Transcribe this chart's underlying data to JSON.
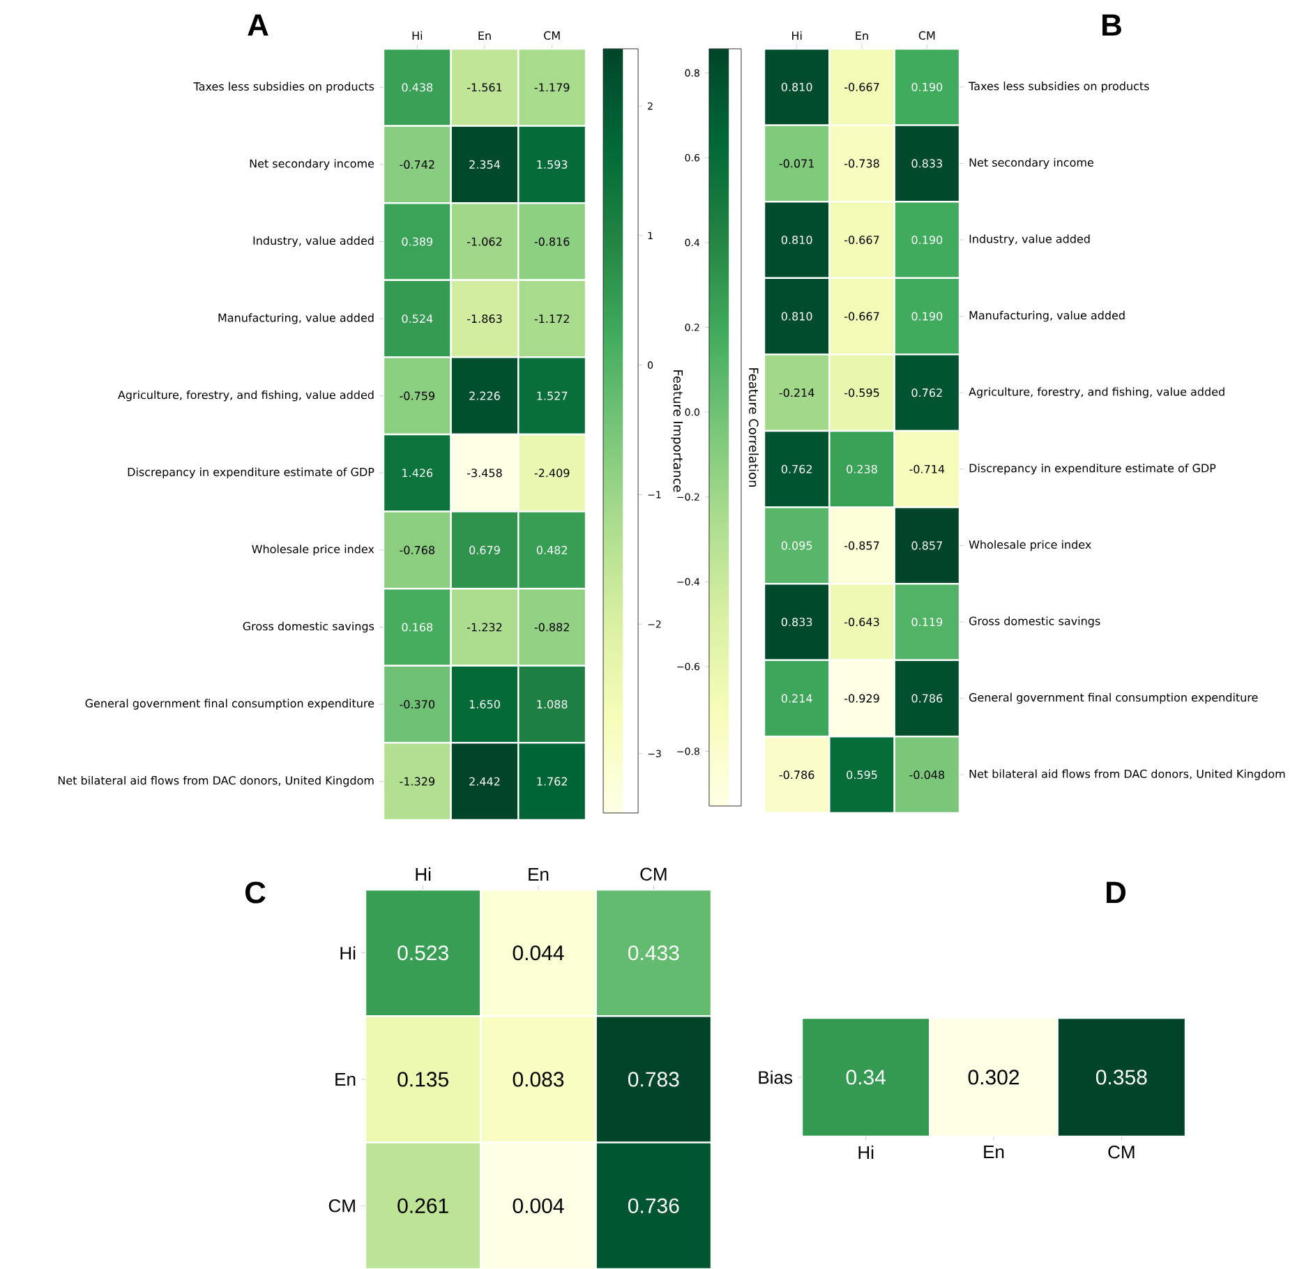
{
  "chart_data": [
    {
      "type": "heatmap",
      "title": "A",
      "clabel": "Feature Importance",
      "categories": [
        "Hi",
        "En",
        "CM"
      ],
      "y_categories": [
        "Taxes less subsidies on products",
        "Net secondary income",
        "Industry, value added",
        "Manufacturing, value added",
        "Agriculture, forestry, and fishing, value added",
        "Discrepancy in expenditure estimate of GDP",
        "Wholesale price index",
        "Gross domestic savings",
        "General government final consumption expenditure",
        "Net bilateral aid flows from DAC donors, United Kingdom"
      ],
      "cells": [
        [
          0.438,
          -1.561,
          -1.179
        ],
        [
          -0.742,
          2.354,
          1.593
        ],
        [
          0.389,
          -1.062,
          -0.816
        ],
        [
          0.524,
          -1.863,
          -1.172
        ],
        [
          -0.759,
          2.226,
          1.527
        ],
        [
          1.426,
          -3.458,
          -2.409
        ],
        [
          -0.768,
          0.679,
          0.482
        ],
        [
          0.168,
          -1.232,
          -0.882
        ],
        [
          -0.37,
          1.65,
          1.088
        ],
        [
          -1.329,
          2.442,
          1.762
        ]
      ],
      "cell_labels": [
        [
          "0.438",
          "-1.561",
          "-1.179"
        ],
        [
          "-0.742",
          "2.354",
          "1.593"
        ],
        [
          "0.389",
          "-1.062",
          "-0.816"
        ],
        [
          "0.524",
          "-1.863",
          "-1.172"
        ],
        [
          "-0.759",
          "2.226",
          "1.527"
        ],
        [
          "1.426",
          "-3.458",
          "-2.409"
        ],
        [
          "-0.768",
          "0.679",
          "0.482"
        ],
        [
          "0.168",
          "-1.232",
          "-0.882"
        ],
        [
          "-0.370",
          "1.650",
          "1.088"
        ],
        [
          "-1.329",
          "2.442",
          "1.762"
        ]
      ],
      "clim": [
        -3.458,
        2.442
      ],
      "cticks": [
        {
          "value": -3,
          "label": "−3"
        },
        {
          "value": -2,
          "label": "−2"
        },
        {
          "value": -1,
          "label": "−1"
        },
        0,
        1,
        2
      ]
    },
    {
      "type": "heatmap",
      "title": "B",
      "clabel": "Feature Correlation",
      "categories": [
        "Hi",
        "En",
        "CM"
      ],
      "y_categories": [
        "Taxes less subsidies on products",
        "Net secondary income",
        "Industry, value added",
        "Manufacturing, value added",
        "Agriculture, forestry, and fishing, value added",
        "Discrepancy in expenditure estimate of GDP",
        "Wholesale price index",
        "Gross domestic savings",
        "General government final consumption expenditure",
        "Net bilateral aid flows from DAC donors, United Kingdom"
      ],
      "cells": [
        [
          0.81,
          -0.667,
          0.19
        ],
        [
          -0.071,
          -0.738,
          0.833
        ],
        [
          0.81,
          -0.667,
          0.19
        ],
        [
          0.81,
          -0.667,
          0.19
        ],
        [
          -0.214,
          -0.595,
          0.762
        ],
        [
          0.762,
          0.238,
          -0.714
        ],
        [
          0.095,
          -0.857,
          0.857
        ],
        [
          0.833,
          -0.643,
          0.119
        ],
        [
          0.214,
          -0.929,
          0.786
        ],
        [
          -0.786,
          0.595,
          -0.048
        ]
      ],
      "cell_labels": [
        [
          "0.810",
          "-0.667",
          "0.190"
        ],
        [
          "-0.071",
          "-0.738",
          "0.833"
        ],
        [
          "0.810",
          "-0.667",
          "0.190"
        ],
        [
          "0.810",
          "-0.667",
          "0.190"
        ],
        [
          "-0.214",
          "-0.595",
          "0.762"
        ],
        [
          "0.762",
          "0.238",
          "-0.714"
        ],
        [
          "0.095",
          "-0.857",
          "0.857"
        ],
        [
          "0.833",
          "-0.643",
          "0.119"
        ],
        [
          "0.214",
          "-0.929",
          "0.786"
        ],
        [
          "-0.786",
          "0.595",
          "-0.048"
        ]
      ],
      "clim": [
        -0.929,
        0.857
      ],
      "cticks": [
        {
          "value": -0.8,
          "label": "−0.8"
        },
        {
          "value": -0.6,
          "label": "−0.6"
        },
        {
          "value": -0.4,
          "label": "−0.4"
        },
        {
          "value": -0.2,
          "label": "−0.2"
        },
        {
          "value": 0,
          "label": "0.0"
        },
        0.2,
        0.4,
        0.6,
        0.8
      ]
    },
    {
      "type": "heatmap",
      "title": "C",
      "categories": [
        "Hi",
        "En",
        "CM"
      ],
      "y_categories": [
        "Hi",
        "En",
        "CM"
      ],
      "cells": [
        [
          0.523,
          0.044,
          0.433
        ],
        [
          0.135,
          0.083,
          0.783
        ],
        [
          0.261,
          0.004,
          0.736
        ]
      ],
      "data_labels": true
    },
    {
      "type": "heatmap",
      "title": "D",
      "categories": [
        "Hi",
        "En",
        "CM"
      ],
      "y_categories": [
        "Bias"
      ],
      "cells": [
        [
          0.34,
          0.302,
          0.358
        ]
      ],
      "data_labels": true
    }
  ]
}
